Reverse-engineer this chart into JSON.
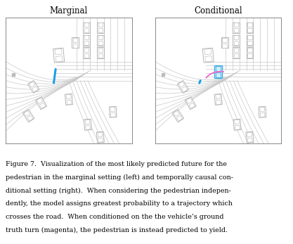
{
  "title_left": "Marginal",
  "title_right": "Conditional",
  "caption_lines": [
    "Figure 7.  Visualization of the most likely predicted future for the",
    "pedestrian in the marginal setting (left) and temporally causal con-",
    "ditional setting (right).  When considering the pedestrian indepen-",
    "dently, the model assigns greatest probability to a trajectory which",
    "crosses the road.  When conditioned on the the vehicle’s ground",
    "truth turn (magenta), the pedestrian is instead predicted to yield."
  ],
  "background_color": "#ffffff",
  "panel_bg": "#ffffff",
  "road_color": "#c8c8c8",
  "car_fill": "#ffffff",
  "car_edge": "#aaaaaa",
  "traj_blue": "#1a9ee8",
  "traj_magenta": "#e868c8",
  "cyan_fill": "#cceeff",
  "cyan_edge": "#44aadd",
  "figsize": [
    4.17,
    3.47
  ],
  "dpi": 100
}
